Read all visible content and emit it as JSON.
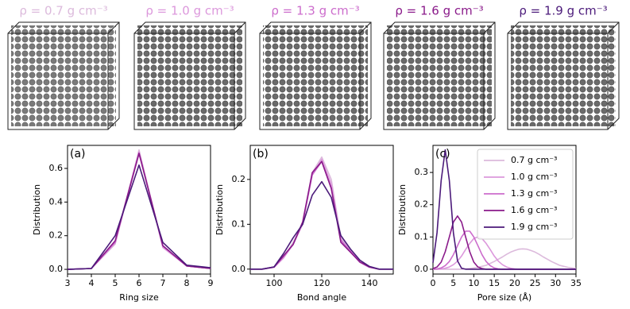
{
  "panels": [
    {
      "label": "ρ = 0.7 g cm⁻³",
      "color": "#dcbadc"
    },
    {
      "label": "ρ = 1.0 g cm⁻³",
      "color": "#dc98dc"
    },
    {
      "label": "ρ = 1.3 g cm⁻³",
      "color": "#cc6ccc"
    },
    {
      "label": "ρ = 1.6 g cm⁻³",
      "color": "#8a1a8a"
    },
    {
      "label": "ρ = 1.9 g cm⁻³",
      "color": "#4b1a7a"
    }
  ],
  "chart_data": [
    {
      "type": "line",
      "panel_label": "(a)",
      "xlabel": "Ring size",
      "ylabel": "Distribution",
      "x": [
        3,
        4,
        5,
        6,
        7,
        8,
        9
      ],
      "xlim": [
        3,
        9
      ],
      "xticks": [
        3,
        4,
        5,
        6,
        7,
        8,
        9
      ],
      "ylim": [
        -0.028,
        0.737
      ],
      "yticks": [
        {
          "value": 0,
          "label": "0.0"
        },
        {
          "value": 0.2,
          "label": "0.2"
        },
        {
          "value": 0.4,
          "label": "0.4"
        },
        {
          "value": 0.6,
          "label": "0.6"
        }
      ],
      "series": [
        {
          "color": "#dcbadc",
          "values": [
            0,
            0.005,
            0.15,
            0.71,
            0.13,
            0.02,
            0.005
          ]
        },
        {
          "color": "#dc98dc",
          "values": [
            0,
            0.005,
            0.16,
            0.7,
            0.13,
            0.02,
            0.005
          ]
        },
        {
          "color": "#cc6ccc",
          "values": [
            0,
            0.005,
            0.16,
            0.69,
            0.14,
            0.02,
            0.005
          ]
        },
        {
          "color": "#8a1a8a",
          "values": [
            0,
            0.005,
            0.17,
            0.69,
            0.14,
            0.02,
            0.005
          ]
        },
        {
          "color": "#4b1a7a",
          "values": [
            0,
            0.005,
            0.2,
            0.62,
            0.16,
            0.025,
            0.01
          ]
        }
      ]
    },
    {
      "type": "line",
      "panel_label": "(b)",
      "xlabel": "Bond angle",
      "ylabel": "Distribution",
      "x": [
        90,
        95,
        100,
        104,
        108,
        112,
        116,
        120,
        124,
        128,
        132,
        136,
        140,
        144,
        150
      ],
      "xlim": [
        90,
        150
      ],
      "xticks": [
        100,
        120,
        140
      ],
      "ylim": [
        -0.011,
        0.276
      ],
      "yticks": [
        {
          "value": 0,
          "label": "0.0"
        },
        {
          "value": 0.1,
          "label": "0.1"
        },
        {
          "value": 0.2,
          "label": "0.2"
        }
      ],
      "series": [
        {
          "color": "#dcbadc",
          "values": [
            0,
            0,
            0.004,
            0.025,
            0.06,
            0.1,
            0.215,
            0.25,
            0.2,
            0.07,
            0.04,
            0.015,
            0.004,
            0,
            0
          ]
        },
        {
          "color": "#dc98dc",
          "values": [
            0,
            0,
            0.004,
            0.025,
            0.055,
            0.1,
            0.21,
            0.245,
            0.19,
            0.065,
            0.04,
            0.015,
            0.004,
            0,
            0
          ]
        },
        {
          "color": "#cc6ccc",
          "values": [
            0,
            0,
            0.004,
            0.028,
            0.055,
            0.105,
            0.21,
            0.24,
            0.18,
            0.065,
            0.04,
            0.016,
            0.004,
            0,
            0
          ]
        },
        {
          "color": "#8a1a8a",
          "values": [
            0,
            0,
            0.005,
            0.03,
            0.055,
            0.105,
            0.215,
            0.24,
            0.18,
            0.06,
            0.038,
            0.016,
            0.005,
            0,
            0
          ]
        },
        {
          "color": "#4b1a7a",
          "values": [
            0,
            0,
            0.005,
            0.035,
            0.07,
            0.1,
            0.165,
            0.195,
            0.16,
            0.075,
            0.045,
            0.02,
            0.006,
            0,
            0
          ]
        }
      ]
    },
    {
      "type": "line",
      "panel_label": "(c)",
      "xlabel": "Pore size (Å)",
      "ylabel": "Distribution",
      "legend": "upper right",
      "x": [
        0,
        1,
        2,
        3,
        4,
        5,
        6,
        7,
        8,
        9,
        10,
        11,
        12,
        13,
        14,
        15,
        16,
        17,
        18,
        19,
        20,
        21,
        22,
        23,
        24,
        25,
        26,
        27,
        28,
        29,
        30,
        31,
        32,
        33,
        34,
        35
      ],
      "xlim": [
        0,
        35
      ],
      "xticks": [
        0,
        5,
        10,
        15,
        20,
        25,
        30,
        35
      ],
      "ylim": [
        -0.015,
        0.384
      ],
      "yticks": [
        {
          "value": 0,
          "label": "0.0"
        },
        {
          "value": 0.1,
          "label": "0.1"
        },
        {
          "value": 0.2,
          "label": "0.2"
        },
        {
          "value": 0.3,
          "label": "0.3"
        }
      ],
      "series": [
        {
          "name": "0.7 g cm⁻³",
          "color": "#dcbadc",
          "values": [
            0,
            0,
            0,
            0,
            0,
            0,
            0,
            0,
            0.001,
            0.002,
            0.004,
            0.006,
            0.009,
            0.012,
            0.018,
            0.024,
            0.031,
            0.038,
            0.046,
            0.053,
            0.058,
            0.062,
            0.063,
            0.062,
            0.058,
            0.053,
            0.046,
            0.038,
            0.031,
            0.024,
            0.018,
            0.012,
            0.009,
            0.006,
            0.004,
            0.002
          ]
        },
        {
          "name": "1.0 g cm⁻³",
          "color": "#dc98dc",
          "values": [
            0,
            0,
            0.001,
            0.003,
            0.007,
            0.014,
            0.025,
            0.041,
            0.061,
            0.08,
            0.095,
            0.1,
            0.095,
            0.08,
            0.061,
            0.041,
            0.025,
            0.014,
            0.007,
            0.003,
            0.001,
            0,
            0,
            0,
            0,
            0,
            0,
            0,
            0,
            0,
            0,
            0,
            0,
            0,
            0,
            0
          ]
        },
        {
          "name": "1.3 g cm⁻³",
          "color": "#cc6ccc",
          "values": [
            0,
            0.001,
            0.004,
            0.011,
            0.024,
            0.045,
            0.073,
            0.1,
            0.118,
            0.118,
            0.1,
            0.073,
            0.045,
            0.024,
            0.011,
            0.004,
            0.001,
            0,
            0,
            0,
            0,
            0,
            0,
            0,
            0,
            0,
            0,
            0,
            0,
            0,
            0,
            0,
            0,
            0,
            0,
            0
          ]
        },
        {
          "name": "1.6 g cm⁻³",
          "color": "#8a1a8a",
          "values": [
            0.002,
            0.007,
            0.022,
            0.054,
            0.1,
            0.146,
            0.165,
            0.146,
            0.1,
            0.054,
            0.022,
            0.007,
            0.002,
            0,
            0,
            0,
            0,
            0,
            0,
            0,
            0,
            0,
            0,
            0,
            0,
            0,
            0,
            0,
            0,
            0,
            0,
            0,
            0,
            0,
            0,
            0
          ]
        },
        {
          "name": "1.9 g cm⁻³",
          "color": "#4b1a7a",
          "values": [
            0.02,
            0.113,
            0.275,
            0.37,
            0.275,
            0.113,
            0.026,
            0.003,
            0,
            0,
            0,
            0,
            0,
            0,
            0,
            0,
            0,
            0,
            0,
            0,
            0,
            0,
            0,
            0,
            0,
            0,
            0,
            0,
            0,
            0,
            0,
            0,
            0,
            0,
            0,
            0
          ]
        }
      ]
    }
  ]
}
